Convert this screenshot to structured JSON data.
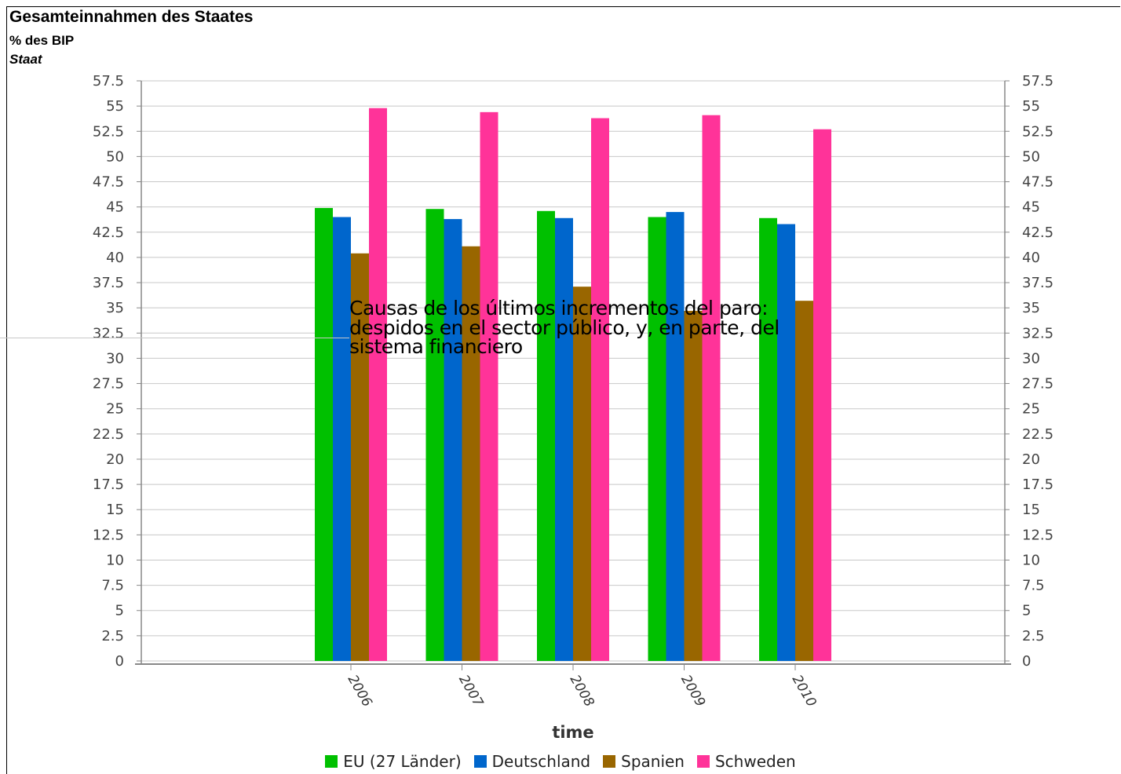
{
  "header": {
    "title": "Gesamteinnahmen des Staates",
    "subtitle": "% des BIP",
    "unit": "Staat"
  },
  "overlay": {
    "lines": [
      "Causas de los últimos incrementos del paro:",
      "despidos en el  sector público, y, en parte, del",
      "sistema  financiero"
    ]
  },
  "colors": {
    "EU (27 Länder)": "#00c000",
    "Deutschland": "#0066cc",
    "Spanien": "#996600",
    "Schweden": "#ff3399",
    "grid": "#c8c8c8",
    "axis": "#888888"
  },
  "chart_data": {
    "type": "bar",
    "title": "Gesamteinnahmen des Staates",
    "subtitle": "% des BIP",
    "xlabel": "time",
    "ylabel": "",
    "ylim": [
      0,
      57.5
    ],
    "ytick_step": 2.5,
    "grid": true,
    "legend_position": "bottom",
    "categories": [
      "2006",
      "2007",
      "2008",
      "2009",
      "2010"
    ],
    "series": [
      {
        "name": "EU (27 Länder)",
        "values": [
          44.9,
          44.8,
          44.6,
          44.0,
          43.9
        ]
      },
      {
        "name": "Deutschland",
        "values": [
          44.0,
          43.8,
          43.9,
          44.5,
          43.3
        ]
      },
      {
        "name": "Spanien",
        "values": [
          40.4,
          41.1,
          37.1,
          34.7,
          35.7
        ]
      },
      {
        "name": "Schweden",
        "values": [
          54.8,
          54.4,
          53.8,
          54.1,
          52.7
        ]
      }
    ]
  }
}
